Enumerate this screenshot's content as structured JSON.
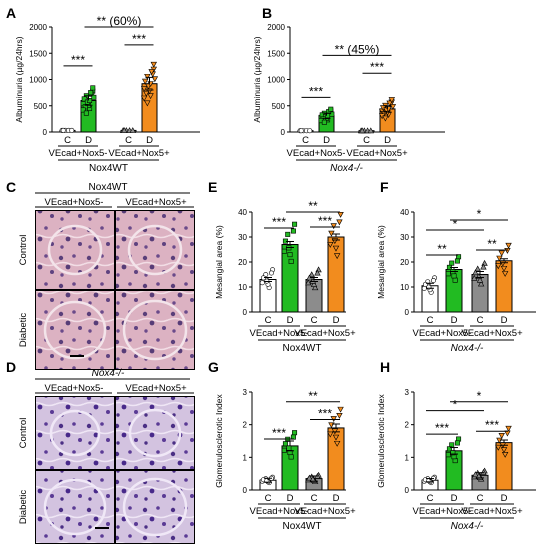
{
  "figure": {
    "panel_labels": {
      "A": "A",
      "B": "B",
      "C": "C",
      "D": "D",
      "E": "E",
      "F": "F",
      "G": "G",
      "H": "H"
    },
    "micrograph_C": {
      "title": "Nox4WT",
      "col1": "VEcad+Nox5-",
      "col2": "VEcad+Nox5+",
      "row1": "Control",
      "row2": "Diabetic"
    },
    "micrograph_D": {
      "title": "Nox4-/-",
      "col1": "VEcad+Nox5-",
      "col2": "VEcad+Nox5+",
      "row1": "Control",
      "row2": "Diabetic"
    }
  },
  "colors": {
    "control": "#ffffff",
    "diabetic_nox5neg": "#22bb22",
    "control_nox5pos": "#8c8c8c",
    "diabetic_nox5pos": "#f28c1e",
    "he_stain": "#d9a3b8",
    "pas_stain": "#c7b3d9"
  },
  "chart_data": [
    {
      "panel": "A",
      "type": "bar",
      "ylabel": "Albuminuria (µg/24hrs)",
      "ylim": [
        0,
        2000
      ],
      "yticks": [
        "0",
        "500",
        "1000",
        "1500",
        "2000"
      ],
      "categories": [
        "C",
        "D",
        "C",
        "D"
      ],
      "values": [
        30,
        600,
        30,
        920
      ],
      "errors": [
        0,
        90,
        0,
        120
      ],
      "group_labels": [
        "VEcad+Nox5-",
        "VEcad+Nox5+"
      ],
      "title": "Nox4WT",
      "annotations": [
        "***",
        "***",
        "** (60%)"
      ]
    },
    {
      "panel": "B",
      "type": "bar",
      "ylabel": "Albuminuria (µg/24hrs)",
      "ylim": [
        0,
        2000
      ],
      "yticks": [
        "0",
        "500",
        "1000",
        "1500",
        "2000"
      ],
      "categories": [
        "C",
        "D",
        "C",
        "D"
      ],
      "values": [
        25,
        310,
        25,
        440
      ],
      "errors": [
        0,
        50,
        0,
        60
      ],
      "group_labels": [
        "VEcad+Nox5-",
        "VEcad+Nox5+"
      ],
      "title": "Nox4-/-",
      "annotations": [
        "***",
        "***",
        "** (45%)"
      ]
    },
    {
      "panel": "E",
      "type": "bar",
      "ylabel": "Mesangial area (%)",
      "ylim": [
        0,
        40
      ],
      "yticks": [
        "0",
        "10",
        "20",
        "30",
        "40"
      ],
      "categories": [
        "C",
        "D",
        "C",
        "D"
      ],
      "values": [
        13,
        27,
        13,
        30
      ],
      "errors": [
        0.8,
        1.2,
        0.8,
        1.2
      ],
      "group_labels": [
        "VEcad+Nox5-",
        "VEcad+Nox5+"
      ],
      "title": "Nox4WT",
      "annotations": [
        "***",
        "***",
        "**"
      ]
    },
    {
      "panel": "F",
      "type": "bar",
      "ylabel": "Mesangial area (%)",
      "ylim": [
        0,
        40
      ],
      "yticks": [
        "0",
        "10",
        "20",
        "30",
        "40"
      ],
      "categories": [
        "C",
        "D",
        "C",
        "D"
      ],
      "values": [
        10.5,
        17,
        15,
        20.5
      ],
      "errors": [
        1,
        0.8,
        1.2,
        0.8
      ],
      "group_labels": [
        "VEcad+Nox5-",
        "VEcad+Nox5+"
      ],
      "title": "Nox4-/-",
      "annotations": [
        "**",
        "**",
        "*",
        "*"
      ]
    },
    {
      "panel": "G",
      "type": "bar",
      "ylabel": "Glomerulosclerotic Index",
      "ylim": [
        0,
        3
      ],
      "yticks": [
        "0",
        "1",
        "2",
        "3"
      ],
      "categories": [
        "C",
        "D",
        "C",
        "D"
      ],
      "values": [
        0.3,
        1.35,
        0.35,
        1.9
      ],
      "errors": [
        0.06,
        0.15,
        0.08,
        0.12
      ],
      "group_labels": [
        "VEcad+Nox5-",
        "VEcad+Nox5+"
      ],
      "title": "Nox4WT",
      "annotations": [
        "***",
        "***",
        "**"
      ]
    },
    {
      "panel": "H",
      "type": "bar",
      "ylabel": "Glomerulosclerotic Index",
      "ylim": [
        0,
        3
      ],
      "yticks": [
        "0",
        "1",
        "2",
        "3"
      ],
      "categories": [
        "C",
        "D",
        "C",
        "D"
      ],
      "values": [
        0.3,
        1.2,
        0.45,
        1.45
      ],
      "errors": [
        0.05,
        0.1,
        0.08,
        0.08
      ],
      "group_labels": [
        "VEcad+Nox5-",
        "VEcad+Nox5+"
      ],
      "title": "Nox4-/-",
      "annotations": [
        "***",
        "***",
        "*",
        "*"
      ]
    }
  ]
}
